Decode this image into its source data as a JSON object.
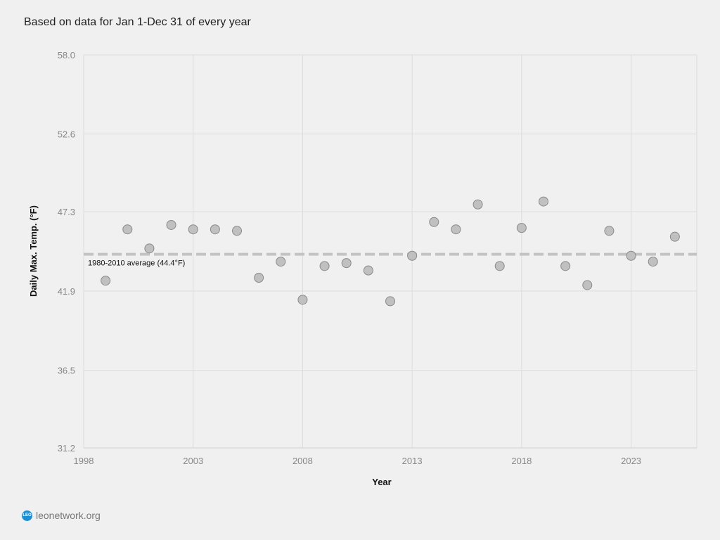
{
  "subtitle": "Based on data for Jan 1-Dec 31 of every year",
  "footer": {
    "logo_text": "LEO",
    "link": "leonetwork.org"
  },
  "colors": {
    "grid": "#dcdcdc",
    "point_fill": "#c0c0c0",
    "point_stroke": "#8a8a8a",
    "avg_line": "#c3c3c3",
    "tick": "#888888"
  },
  "chart_data": {
    "type": "scatter",
    "title": "Based on data for Jan 1-Dec 31 of every year",
    "xlabel": "Year",
    "ylabel": "Daily Max. Temp. (°F)",
    "xlim": [
      1998,
      2026
    ],
    "ylim": [
      31.2,
      58.0
    ],
    "xticks": [
      "1998",
      "2003",
      "2008",
      "2013",
      "2018",
      "2023"
    ],
    "yticks": [
      "31.2",
      "36.5",
      "41.9",
      "47.3",
      "52.6",
      "58.0"
    ],
    "grid": true,
    "x": [
      1999,
      2000,
      2001,
      2002,
      2003,
      2004,
      2005,
      2006,
      2007,
      2008,
      2009,
      2010,
      2011,
      2012,
      2013,
      2014,
      2015,
      2016,
      2017,
      2018,
      2019,
      2020,
      2021,
      2022,
      2023,
      2024,
      2025
    ],
    "y": [
      42.6,
      46.1,
      44.8,
      46.4,
      46.1,
      46.1,
      46.0,
      42.8,
      43.9,
      41.3,
      43.6,
      43.8,
      43.3,
      41.2,
      44.3,
      46.6,
      46.1,
      47.8,
      43.6,
      46.2,
      48.0,
      43.6,
      42.3,
      46.0,
      44.3,
      43.9,
      45.6
    ],
    "reference_line": {
      "value": 44.4,
      "label": "1980-2010 average (44.4°F)"
    }
  }
}
